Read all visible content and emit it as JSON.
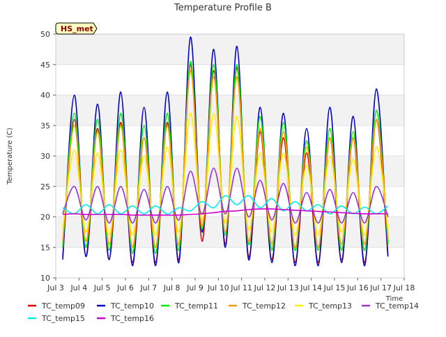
{
  "chart_data": {
    "type": "line",
    "title": "Temperature Profile B",
    "xlabel": "Time",
    "ylabel": "Temperature (C)",
    "annotation": "HS_met",
    "xlim": [
      3,
      18
    ],
    "ylim": [
      10,
      50
    ],
    "x_ticks": [
      {
        "value": 3,
        "label": "Jul 3"
      },
      {
        "value": 4,
        "label": "Jul 4"
      },
      {
        "value": 5,
        "label": "Jul 5"
      },
      {
        "value": 6,
        "label": "Jul 6"
      },
      {
        "value": 7,
        "label": "Jul 7"
      },
      {
        "value": 8,
        "label": "Jul 8"
      },
      {
        "value": 9,
        "label": "Jul 9"
      },
      {
        "value": 10,
        "label": "Jul 10"
      },
      {
        "value": 11,
        "label": "Jul 11"
      },
      {
        "value": 12,
        "label": "Jul 12"
      },
      {
        "value": 13,
        "label": "Jul 13"
      },
      {
        "value": 14,
        "label": "Jul 14"
      },
      {
        "value": 15,
        "label": "Jul 15"
      },
      {
        "value": 16,
        "label": "Jul 16"
      },
      {
        "value": 17,
        "label": "Jul 17"
      },
      {
        "value": 18,
        "label": "Jul 18"
      }
    ],
    "y_ticks": [
      10,
      15,
      20,
      25,
      30,
      35,
      40,
      45,
      50
    ],
    "grid": true,
    "background_bands": true,
    "legend_position": "bottom",
    "x_start": 3.3,
    "x_step": 0.5,
    "series": [
      {
        "name": "TC_temp09",
        "color": "#dd0000",
        "values": [
          13.5,
          36.0,
          13.5,
          34.5,
          13.0,
          35.5,
          12.5,
          33.0,
          12.5,
          35.5,
          13.0,
          45.0,
          16.0,
          44.0,
          15.5,
          44.5,
          13.5,
          34.0,
          13.0,
          33.0,
          12.5,
          30.5,
          12.5,
          33.0,
          13.0,
          33.0,
          12.5,
          36.0,
          13.5
        ]
      },
      {
        "name": "TC_temp10",
        "color": "#0000cc",
        "values": [
          13.0,
          40.0,
          13.5,
          38.5,
          13.0,
          40.5,
          12.0,
          38.0,
          12.0,
          40.5,
          12.5,
          49.5,
          17.5,
          47.5,
          15.0,
          48.0,
          13.0,
          38.0,
          12.5,
          37.0,
          12.0,
          34.5,
          12.0,
          38.0,
          12.5,
          36.5,
          12.0,
          41.0,
          13.5
        ]
      },
      {
        "name": "TC_temp11",
        "color": "#00ee00",
        "values": [
          15.0,
          37.0,
          15.0,
          36.0,
          14.5,
          37.0,
          14.0,
          35.0,
          14.0,
          37.0,
          14.5,
          45.5,
          18.0,
          45.0,
          17.0,
          45.0,
          15.5,
          36.5,
          14.5,
          35.5,
          14.5,
          32.5,
          14.5,
          34.5,
          14.5,
          34.0,
          14.5,
          37.5,
          15.5
        ]
      },
      {
        "name": "TC_temp12",
        "color": "#ff9900",
        "values": [
          16.0,
          35.0,
          16.0,
          34.0,
          15.5,
          35.0,
          15.0,
          33.0,
          15.0,
          35.0,
          15.5,
          44.0,
          18.5,
          43.0,
          17.5,
          43.0,
          16.0,
          34.5,
          15.5,
          34.0,
          15.0,
          31.5,
          15.0,
          33.0,
          15.5,
          33.0,
          15.5,
          36.0,
          16.5
        ]
      },
      {
        "name": "TC_temp13",
        "color": "#ffee00",
        "values": [
          18.0,
          31.0,
          17.5,
          30.5,
          17.0,
          31.0,
          17.0,
          30.0,
          17.0,
          31.5,
          17.5,
          37.0,
          19.5,
          37.0,
          19.0,
          36.5,
          18.0,
          30.5,
          17.5,
          30.5,
          17.0,
          28.5,
          17.0,
          30.0,
          17.5,
          29.5,
          17.0,
          31.5,
          18.0
        ]
      },
      {
        "name": "TC_temp14",
        "color": "#9933dd",
        "values": [
          20.5,
          25.0,
          19.5,
          25.0,
          19.0,
          25.0,
          19.0,
          24.5,
          19.0,
          25.0,
          19.5,
          27.5,
          20.5,
          28.0,
          20.5,
          28.0,
          20.0,
          26.0,
          19.5,
          25.5,
          19.0,
          24.0,
          19.0,
          24.5,
          19.0,
          24.0,
          19.0,
          25.0,
          20.0
        ]
      },
      {
        "name": "TC_temp15",
        "color": "#00eeee",
        "values": [
          21.5,
          20.5,
          22.0,
          20.5,
          22.0,
          20.5,
          21.8,
          20.5,
          21.8,
          20.5,
          21.5,
          21.0,
          22.5,
          21.5,
          23.5,
          22.0,
          23.5,
          21.5,
          23.0,
          21.0,
          22.5,
          21.0,
          22.0,
          20.5,
          21.8,
          20.5,
          21.6,
          20.5,
          21.8
        ]
      },
      {
        "name": "TC_temp16",
        "color": "#cc00cc",
        "values": [
          20.4,
          20.5,
          20.4,
          20.4,
          20.4,
          20.4,
          20.3,
          20.3,
          20.3,
          20.3,
          20.3,
          20.4,
          20.5,
          20.7,
          20.9,
          21.0,
          21.2,
          21.3,
          21.3,
          21.2,
          21.1,
          21.0,
          20.9,
          20.8,
          20.7,
          20.6,
          20.5,
          20.5,
          20.5
        ]
      }
    ]
  }
}
